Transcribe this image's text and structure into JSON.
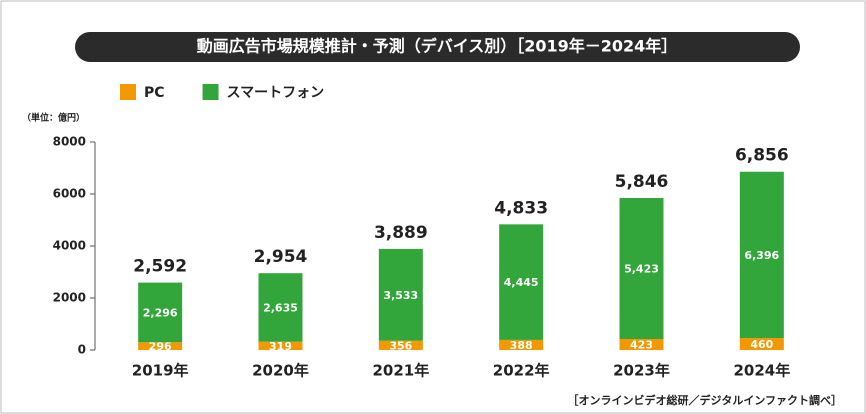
{
  "chart_data": {
    "type": "stacked_bar",
    "title": "動画広告市場規模推計・予測（デバイス別）［2019年－2024年］",
    "unit_label": "（単位：億円）",
    "source": "［オンラインビデオ総研／デジタルインファクト調べ］",
    "categories": [
      "2019年",
      "2020年",
      "2021年",
      "2022年",
      "2023年",
      "2024年"
    ],
    "series": [
      {
        "name": "PC",
        "color": "#f39800",
        "values": [
          296,
          319,
          356,
          388,
          423,
          460
        ]
      },
      {
        "name": "スマートフォン",
        "color": "#33a63b",
        "values": [
          2296,
          2635,
          3533,
          4445,
          5423,
          6396
        ],
        "value_labels": [
          "2,296",
          "2,635",
          "3,533",
          "4,445",
          "5,423",
          "6,396"
        ]
      }
    ],
    "totals": [
      2592,
      2954,
      3889,
      4833,
      5846,
      6856
    ],
    "total_labels": [
      "2,592",
      "2,954",
      "3,889",
      "4,833",
      "5,846",
      "6,856"
    ],
    "ylim": [
      0,
      8000
    ],
    "yticks": [
      0,
      2000,
      4000,
      6000,
      8000
    ],
    "grid": false,
    "legend": "top-left"
  }
}
